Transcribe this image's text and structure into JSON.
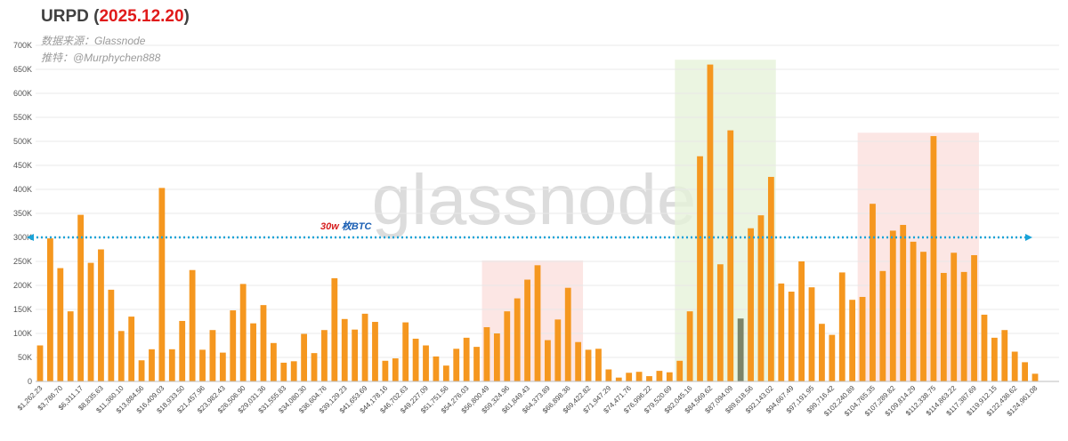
{
  "header": {
    "title_prefix": "URPD (",
    "title_date": "2025.12.20",
    "title_suffix": ")",
    "source_line": "数据来源：Glassnode",
    "twitter_line": "推特：@Murphychen888"
  },
  "watermark": "glassnode",
  "colors": {
    "bar": "#f5971f",
    "highlight_bar": "#7b8469",
    "reference_line": "#1aa3d8",
    "zone_red": "#fbe0dd",
    "zone_green": "#e6f3d9",
    "title_date": "#e01a1a",
    "annotation_prefix": "#d61f1f",
    "annotation_suffix": "#1a5fb4"
  },
  "chart_data": {
    "type": "bar",
    "title": "URPD (2025.12.20)",
    "ylim": [
      0,
      700000
    ],
    "yticks": [
      0,
      50000,
      100000,
      150000,
      200000,
      250000,
      300000,
      350000,
      400000,
      450000,
      500000,
      550000,
      600000,
      650000,
      700000
    ],
    "ytick_labels": [
      "0",
      "50K",
      "100K",
      "150K",
      "200K",
      "250K",
      "300K",
      "350K",
      "400K",
      "450K",
      "500K",
      "550K",
      "600K",
      "650K",
      "700K"
    ],
    "x_tick_labels": [
      "$1,262.23",
      "$3,786.70",
      "$6,311.17",
      "$8,835.63",
      "$11,360.10",
      "$13,884.56",
      "$16,409.03",
      "$18,933.50",
      "$21,457.96",
      "$23,982.43",
      "$26,506.90",
      "$29,031.36",
      "$31,555.83",
      "$34,080.30",
      "$36,604.76",
      "$39,129.23",
      "$41,653.69",
      "$44,178.16",
      "$46,702.63",
      "$49,227.09",
      "$51,751.56",
      "$54,276.03",
      "$56,800.49",
      "$59,324.96",
      "$61,849.43",
      "$64,373.89",
      "$66,898.36",
      "$69,422.82",
      "$71,947.29",
      "$74,471.76",
      "$76,996.22",
      "$79,520.69",
      "$82,045.16",
      "$84,569.62",
      "$87,094.09",
      "$89,618.56",
      "$92,143.02",
      "$94,667.49",
      "$97,191.95",
      "$99,716.42",
      "$102,240.89",
      "$104,765.35",
      "$107,289.82",
      "$109,814.29",
      "$112,338.75",
      "$114,863.22",
      "$117,387.69",
      "$119,912.15",
      "$122,436.62",
      "$124,961.08"
    ],
    "values": [
      75000,
      298000,
      236000,
      146000,
      347000,
      247000,
      275000,
      191000,
      105000,
      135000,
      44000,
      67000,
      403000,
      67000,
      126000,
      232000,
      66000,
      107000,
      60000,
      148000,
      203000,
      121000,
      159000,
      80000,
      39000,
      42000,
      99000,
      59000,
      107000,
      215000,
      130000,
      108000,
      141000,
      124000,
      43000,
      48000,
      123000,
      89000,
      75000,
      52000,
      33000,
      68000,
      91000,
      72000,
      113000,
      100000,
      146000,
      173000,
      212000,
      242000,
      86000,
      129000,
      195000,
      82000,
      66000,
      68000,
      25000,
      8000,
      18000,
      20000,
      11000,
      22000,
      19000,
      43000,
      146000,
      469000,
      660000,
      244000,
      523000,
      131000,
      319000,
      346000,
      426000,
      204000,
      187000,
      250000,
      196000,
      120000,
      97000,
      227000,
      170000,
      176000,
      370000,
      230000,
      314000,
      326000,
      291000,
      270000,
      511000,
      226000,
      268000,
      228000,
      263000,
      139000,
      91000,
      107000,
      62000,
      40000,
      16000
    ],
    "highlighted_bar_index": 69,
    "reference_line": {
      "value": 300000,
      "label_prefix": "30w",
      "label_suffix": " 枚BTC"
    },
    "zones": [
      {
        "from_index": 44,
        "to_index": 53,
        "color": "red",
        "top": 252000
      },
      {
        "from_index": 63,
        "to_index": 72,
        "color": "green",
        "top": 670000
      },
      {
        "from_index": 81,
        "to_index": 92,
        "color": "red",
        "top": 518000
      }
    ],
    "grid": true,
    "legend": "none"
  }
}
